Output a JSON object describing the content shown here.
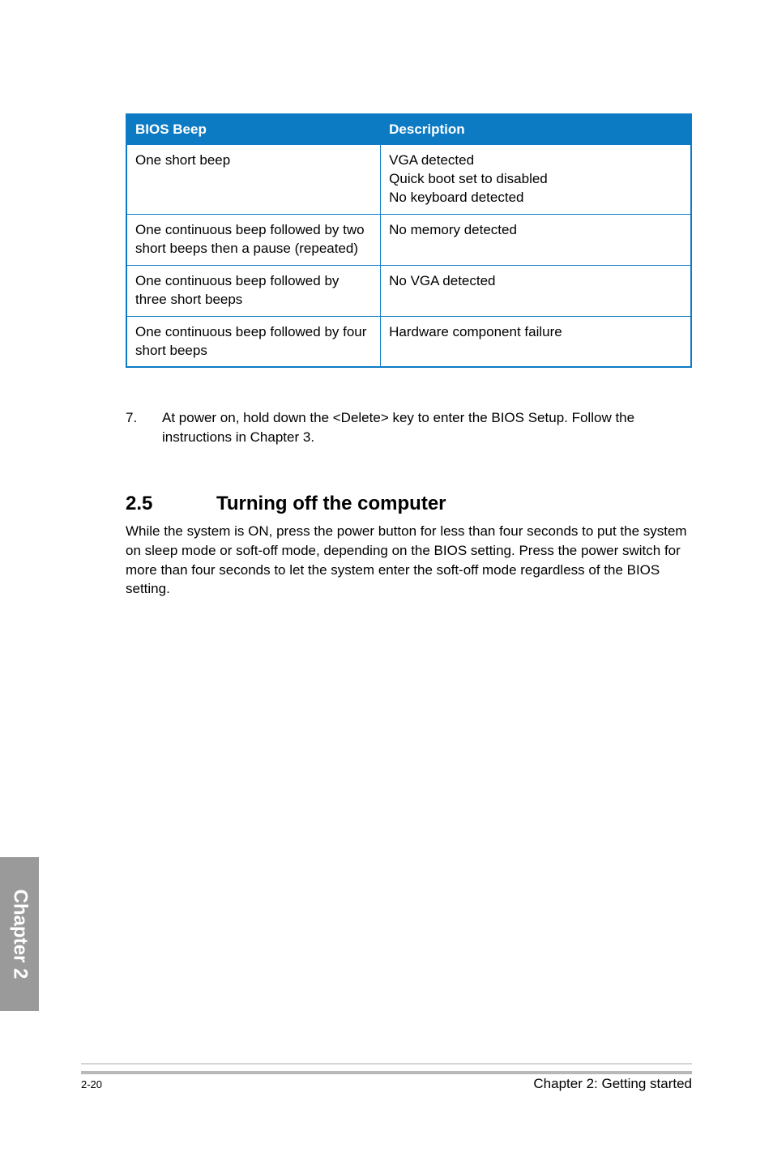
{
  "table": {
    "header_bg": "#0d7bc4",
    "border_color": "#0d7bc4",
    "columns": [
      "BIOS Beep",
      "Description"
    ],
    "rows": [
      {
        "beep": "One short beep",
        "desc": "VGA detected\nQuick boot set to disabled\nNo keyboard detected"
      },
      {
        "beep": "One continuous beep followed by two short beeps then a pause (repeated)",
        "desc": "No memory detected"
      },
      {
        "beep": "One continuous beep followed by three short beeps",
        "desc": "No VGA detected"
      },
      {
        "beep": "One continuous beep followed by four short beeps",
        "desc": "Hardware component failure"
      }
    ]
  },
  "list_item": {
    "number": "7.",
    "text": "At power on, hold down the <Delete> key to enter the BIOS Setup. Follow the instructions in Chapter 3."
  },
  "section": {
    "number": "2.5",
    "title": "Turning off the computer",
    "body": "While the system is ON, press the power button for less than four seconds to put the system on sleep mode or soft-off mode, depending on the BIOS setting. Press the power switch for more than four seconds to let the system enter the soft-off mode regardless of the BIOS setting."
  },
  "tab": {
    "label": "Chapter 2"
  },
  "footer": {
    "page": "2-20",
    "chapter": "Chapter 2: Getting started"
  }
}
